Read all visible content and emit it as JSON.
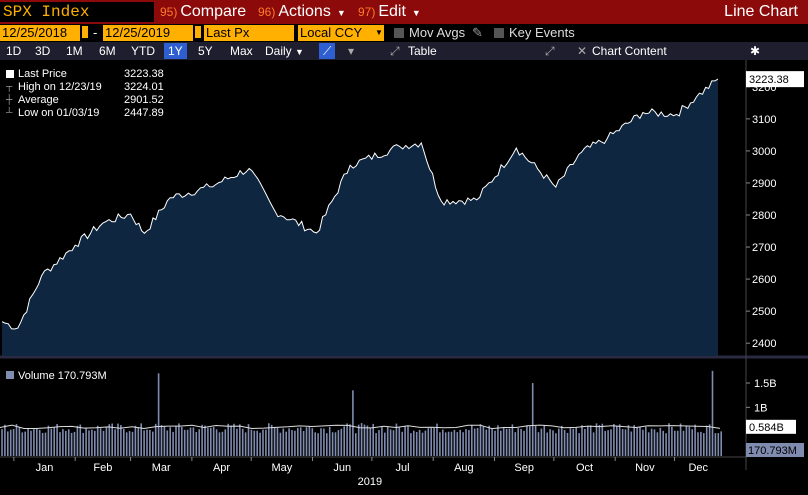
{
  "header": {
    "ticker": "SPX Index",
    "compare": {
      "num": "95)",
      "label": "Compare"
    },
    "actions": {
      "num": "96)",
      "label": "Actions"
    },
    "edit": {
      "num": "97)",
      "label": "Edit"
    },
    "chart_type": "Line Chart"
  },
  "params": {
    "start_date": "12/25/2018",
    "end_date": "12/25/2019",
    "field": "Last Px",
    "currency": "Local CCY",
    "mov_avgs": "Mov Avgs",
    "key_events": "Key Events"
  },
  "range": {
    "buttons": [
      "1D",
      "3D",
      "1M",
      "6M",
      "YTD",
      "1Y",
      "5Y",
      "Max"
    ],
    "active": "1Y",
    "interval": "Daily",
    "table": "Table",
    "chart_content": "Chart Content"
  },
  "legend": {
    "last_price_label": "Last Price",
    "last_price": "3223.38",
    "high_label": "High on 12/23/19",
    "high": "3224.01",
    "average_label": "Average",
    "average": "2901.52",
    "low_label": "Low on 01/03/19",
    "low": "2447.89",
    "volume_label": "Volume",
    "volume": "170.793M"
  },
  "colors": {
    "accent": "#ffb000",
    "title_bg": "#8c0a0a",
    "area_fill": "#0e2640",
    "line": "#ffffff",
    "volume_bar": "#7f8cb0"
  },
  "chart_data": [
    {
      "type": "area",
      "series": [
        {
          "name": "Last Price",
          "x": [
            "2018-12-26",
            "2019-01-03",
            "2019-01-15",
            "2019-02-01",
            "2019-02-15",
            "2019-03-01",
            "2019-03-08",
            "2019-03-21",
            "2019-04-10",
            "2019-04-30",
            "2019-05-13",
            "2019-06-03",
            "2019-06-20",
            "2019-07-15",
            "2019-07-26",
            "2019-08-05",
            "2019-08-23",
            "2019-09-12",
            "2019-10-02",
            "2019-10-15",
            "2019-10-28",
            "2019-11-15",
            "2019-12-02",
            "2019-12-12",
            "2019-12-23"
          ],
          "values": [
            2467,
            2447,
            2610,
            2706,
            2775,
            2803,
            2743,
            2854,
            2888,
            2945,
            2812,
            2744,
            2955,
            3014,
            3025,
            2844,
            2847,
            3009,
            2887,
            2996,
            3039,
            3120,
            3114,
            3168,
            3224
          ]
        }
      ],
      "y_ticks": [
        2400,
        2500,
        2600,
        2700,
        2800,
        2900,
        3000,
        3100,
        3200
      ],
      "ylim": [
        2360,
        3240
      ],
      "last_label": "3223.38",
      "months": [
        "Jan",
        "Feb",
        "Mar",
        "Apr",
        "May",
        "Jun",
        "Jul",
        "Aug",
        "Sep",
        "Oct",
        "Nov",
        "Dec"
      ],
      "year": "2019"
    },
    {
      "type": "bar",
      "series": [
        {
          "name": "Volume"
        }
      ],
      "y_ticks": [
        "1.5B",
        "1B"
      ],
      "ylim_billions": [
        0,
        1.85
      ],
      "typical_billions": 0.6,
      "spikes": [
        {
          "x": "2019-03-15",
          "v": 1.7
        },
        {
          "x": "2019-06-21",
          "v": 1.35
        },
        {
          "x": "2019-09-20",
          "v": 1.5
        },
        {
          "x": "2019-12-20",
          "v": 1.75
        }
      ],
      "moving_avg_label": "0.584B",
      "last_label": "170.793M"
    }
  ]
}
